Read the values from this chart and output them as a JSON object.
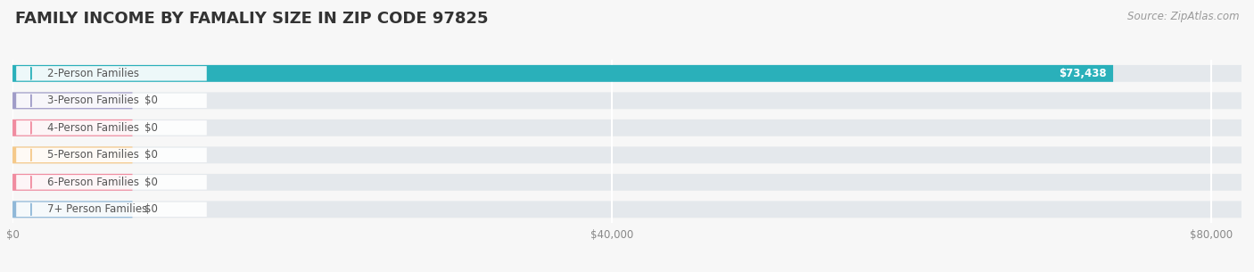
{
  "title": "FAMILY INCOME BY FAMALIY SIZE IN ZIP CODE 97825",
  "source": "Source: ZipAtlas.com",
  "categories": [
    "2-Person Families",
    "3-Person Families",
    "4-Person Families",
    "5-Person Families",
    "6-Person Families",
    "7+ Person Families"
  ],
  "values": [
    73438,
    0,
    0,
    0,
    0,
    0
  ],
  "bar_colors": [
    "#2ab0ba",
    "#a09cc8",
    "#f08ca0",
    "#f5c98a",
    "#f08ca0",
    "#90b8d8"
  ],
  "dot_colors": [
    "#2ab0ba",
    "#a09cc8",
    "#f08ca0",
    "#f5c98a",
    "#f08ca0",
    "#90b8d8"
  ],
  "bar_labels": [
    "$73,438",
    "$0",
    "$0",
    "$0",
    "$0",
    "$0"
  ],
  "zero_bar_width": 8000,
  "xlim": [
    0,
    82000
  ],
  "xticks": [
    0,
    40000,
    80000
  ],
  "xtick_labels": [
    "$0",
    "$40,000",
    "$80,000"
  ],
  "title_fontsize": 13,
  "source_fontsize": 8.5,
  "bar_height": 0.62,
  "background_color": "#f7f7f7",
  "bar_bg_color": "#e4e8ec",
  "bar_bg_alpha": 0.5,
  "grid_color": "#ffffff",
  "label_fontsize": 8.5,
  "value_fontsize": 8.5,
  "text_color": "#555555"
}
